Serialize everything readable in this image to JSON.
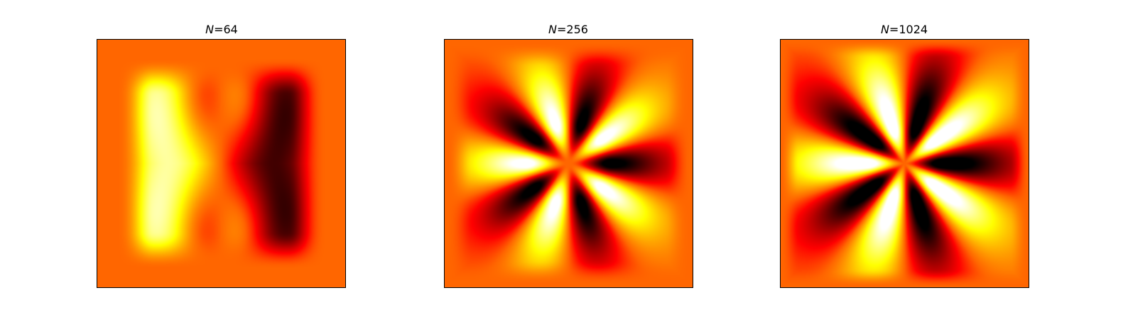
{
  "chart_data": {
    "type": "heatmap",
    "colormap": "hot",
    "colormap_stops": [
      {
        "t": 0.0,
        "color": "#000000"
      },
      {
        "t": 0.375,
        "color": "#ff0000"
      },
      {
        "t": 0.5,
        "color": "#ff6600"
      },
      {
        "t": 0.75,
        "color": "#ffff00"
      },
      {
        "t": 1.0,
        "color": "#ffffff"
      }
    ],
    "axes_visible": false,
    "panels": [
      {
        "title_var": "N",
        "title_eq": "=",
        "title_value": "64",
        "N": 64
      },
      {
        "title_var": "N",
        "title_eq": "=",
        "title_value": "256",
        "N": 256
      },
      {
        "title_var": "N",
        "title_eq": "=",
        "title_value": "1024",
        "N": 1024
      }
    ]
  }
}
